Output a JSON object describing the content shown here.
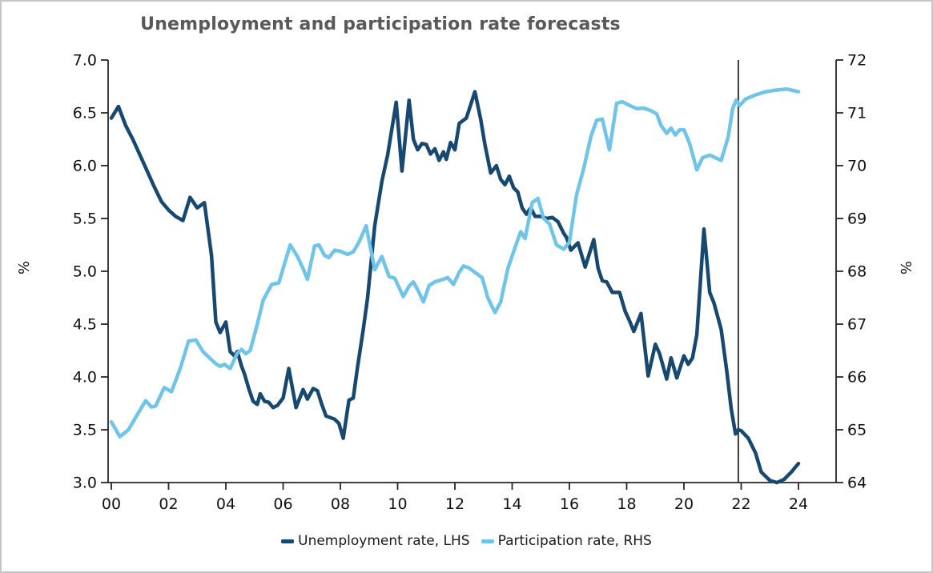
{
  "chart_data": {
    "type": "line",
    "title": "Unemployment and participation rate forecasts",
    "legend_position": "bottom",
    "grid": false,
    "forecast_line_year": 2021.9,
    "y_left": {
      "label": "%",
      "min": 3.0,
      "max": 7.0,
      "tick_step": 0.5,
      "ticks": [
        "7.0",
        "6.5",
        "6.0",
        "5.5",
        "5.0",
        "4.5",
        "4.0",
        "3.5",
        "3.0"
      ]
    },
    "y_right": {
      "label": "%",
      "min": 64,
      "max": 72,
      "tick_step": 1,
      "ticks": [
        "72",
        "71",
        "70",
        "69",
        "68",
        "67",
        "66",
        "65",
        "64"
      ]
    },
    "x": {
      "tick_labels": [
        "00",
        "02",
        "04",
        "06",
        "08",
        "10",
        "12",
        "14",
        "16",
        "18",
        "20",
        "22",
        "24"
      ],
      "tick_years": [
        2000,
        2002,
        2004,
        2006,
        2008,
        2010,
        2012,
        2014,
        2016,
        2018,
        2020,
        2022,
        2024
      ],
      "range": [
        2000,
        2025.3
      ]
    },
    "series": [
      {
        "name": "Unemployment rate, LHS",
        "axis": "left",
        "color": "#17486F",
        "points": [
          [
            0,
            6.45
          ],
          [
            0.25,
            6.56
          ],
          [
            0.5,
            6.38
          ],
          [
            0.75,
            6.25
          ],
          [
            1,
            6.1
          ],
          [
            1.25,
            5.95
          ],
          [
            1.5,
            5.8
          ],
          [
            1.75,
            5.66
          ],
          [
            2,
            5.58
          ],
          [
            2.25,
            5.52
          ],
          [
            2.5,
            5.48
          ],
          [
            2.75,
            5.7
          ],
          [
            3,
            5.6
          ],
          [
            3.25,
            5.65
          ],
          [
            3.5,
            5.15
          ],
          [
            3.65,
            4.52
          ],
          [
            3.8,
            4.42
          ],
          [
            4,
            4.52
          ],
          [
            4.15,
            4.24
          ],
          [
            4.3,
            4.2
          ],
          [
            4.4,
            4.24
          ],
          [
            4.55,
            4.1
          ],
          [
            4.65,
            4.03
          ],
          [
            4.8,
            3.89
          ],
          [
            4.95,
            3.77
          ],
          [
            5.1,
            3.74
          ],
          [
            5.2,
            3.84
          ],
          [
            5.35,
            3.77
          ],
          [
            5.5,
            3.76
          ],
          [
            5.65,
            3.71
          ],
          [
            5.8,
            3.73
          ],
          [
            6,
            3.8
          ],
          [
            6.2,
            4.08
          ],
          [
            6.45,
            3.71
          ],
          [
            6.7,
            3.88
          ],
          [
            6.85,
            3.79
          ],
          [
            7.05,
            3.89
          ],
          [
            7.2,
            3.87
          ],
          [
            7.35,
            3.74
          ],
          [
            7.5,
            3.63
          ],
          [
            7.8,
            3.6
          ],
          [
            7.95,
            3.56
          ],
          [
            8.1,
            3.42
          ],
          [
            8.3,
            3.78
          ],
          [
            8.45,
            3.8
          ],
          [
            8.6,
            4.09
          ],
          [
            8.8,
            4.45
          ],
          [
            8.95,
            4.75
          ],
          [
            9.2,
            5.43
          ],
          [
            9.45,
            5.85
          ],
          [
            9.65,
            6.1
          ],
          [
            9.95,
            6.6
          ],
          [
            10.15,
            5.95
          ],
          [
            10.4,
            6.62
          ],
          [
            10.55,
            6.25
          ],
          [
            10.7,
            6.15
          ],
          [
            10.85,
            6.21
          ],
          [
            11,
            6.2
          ],
          [
            11.15,
            6.11
          ],
          [
            11.3,
            6.16
          ],
          [
            11.45,
            6.05
          ],
          [
            11.6,
            6.13
          ],
          [
            11.7,
            6.06
          ],
          [
            11.85,
            6.22
          ],
          [
            12,
            6.15
          ],
          [
            12.15,
            6.4
          ],
          [
            12.4,
            6.45
          ],
          [
            12.7,
            6.7
          ],
          [
            12.9,
            6.44
          ],
          [
            13.05,
            6.2
          ],
          [
            13.25,
            5.93
          ],
          [
            13.45,
            6.0
          ],
          [
            13.6,
            5.87
          ],
          [
            13.75,
            5.82
          ],
          [
            13.9,
            5.9
          ],
          [
            14.05,
            5.79
          ],
          [
            14.2,
            5.75
          ],
          [
            14.35,
            5.6
          ],
          [
            14.5,
            5.54
          ],
          [
            14.65,
            5.6
          ],
          [
            14.8,
            5.52
          ],
          [
            15,
            5.52
          ],
          [
            15.2,
            5.5
          ],
          [
            15.4,
            5.51
          ],
          [
            15.6,
            5.47
          ],
          [
            15.8,
            5.36
          ],
          [
            15.9,
            5.32
          ],
          [
            16.05,
            5.2
          ],
          [
            16.3,
            5.27
          ],
          [
            16.55,
            5.04
          ],
          [
            16.85,
            5.3
          ],
          [
            17,
            5.03
          ],
          [
            17.15,
            4.91
          ],
          [
            17.3,
            4.9
          ],
          [
            17.5,
            4.8
          ],
          [
            17.75,
            4.8
          ],
          [
            17.95,
            4.62
          ],
          [
            18.1,
            4.53
          ],
          [
            18.25,
            4.43
          ],
          [
            18.5,
            4.6
          ],
          [
            18.75,
            4.01
          ],
          [
            19,
            4.31
          ],
          [
            19.15,
            4.22
          ],
          [
            19.4,
            3.98
          ],
          [
            19.55,
            4.18
          ],
          [
            19.75,
            3.99
          ],
          [
            20,
            4.2
          ],
          [
            20.15,
            4.12
          ],
          [
            20.3,
            4.18
          ],
          [
            20.45,
            4.4
          ],
          [
            20.7,
            5.4
          ],
          [
            20.9,
            4.8
          ],
          [
            21.05,
            4.7
          ],
          [
            21.3,
            4.45
          ],
          [
            21.5,
            4.05
          ],
          [
            21.65,
            3.7
          ],
          [
            21.8,
            3.46
          ],
          [
            21.9,
            3.5
          ],
          [
            22,
            3.49
          ],
          [
            22.25,
            3.42
          ],
          [
            22.5,
            3.28
          ],
          [
            22.7,
            3.1
          ],
          [
            23,
            3.02
          ],
          [
            23.25,
            3.0
          ],
          [
            23.5,
            3.03
          ],
          [
            23.75,
            3.1
          ],
          [
            24,
            3.18
          ]
        ]
      },
      {
        "name": "Participation rate, RHS",
        "axis": "right",
        "color": "#6FC4E8",
        "points": [
          [
            0,
            65.15
          ],
          [
            0.3,
            64.87
          ],
          [
            0.6,
            65.0
          ],
          [
            0.9,
            65.28
          ],
          [
            1.2,
            65.55
          ],
          [
            1.4,
            65.43
          ],
          [
            1.55,
            65.45
          ],
          [
            1.85,
            65.8
          ],
          [
            2.1,
            65.72
          ],
          [
            2.4,
            66.15
          ],
          [
            2.7,
            66.68
          ],
          [
            2.95,
            66.7
          ],
          [
            3.2,
            66.48
          ],
          [
            3.45,
            66.35
          ],
          [
            3.65,
            66.25
          ],
          [
            3.8,
            66.2
          ],
          [
            3.95,
            66.24
          ],
          [
            4.15,
            66.16
          ],
          [
            4.4,
            66.45
          ],
          [
            4.55,
            66.52
          ],
          [
            4.7,
            66.44
          ],
          [
            4.85,
            66.5
          ],
          [
            5.1,
            67.0
          ],
          [
            5.3,
            67.45
          ],
          [
            5.6,
            67.75
          ],
          [
            5.85,
            67.78
          ],
          [
            6.25,
            68.5
          ],
          [
            6.5,
            68.28
          ],
          [
            6.7,
            68.05
          ],
          [
            6.85,
            67.85
          ],
          [
            7.1,
            68.48
          ],
          [
            7.25,
            68.5
          ],
          [
            7.45,
            68.3
          ],
          [
            7.6,
            68.26
          ],
          [
            7.8,
            68.4
          ],
          [
            8,
            68.38
          ],
          [
            8.25,
            68.32
          ],
          [
            8.45,
            68.37
          ],
          [
            8.65,
            68.55
          ],
          [
            8.9,
            68.86
          ],
          [
            9.2,
            68.03
          ],
          [
            9.45,
            68.28
          ],
          [
            9.7,
            67.9
          ],
          [
            9.9,
            67.87
          ],
          [
            10.2,
            67.52
          ],
          [
            10.4,
            67.72
          ],
          [
            10.55,
            67.8
          ],
          [
            10.75,
            67.6
          ],
          [
            10.9,
            67.42
          ],
          [
            11.1,
            67.73
          ],
          [
            11.3,
            67.8
          ],
          [
            11.6,
            67.85
          ],
          [
            11.75,
            67.88
          ],
          [
            11.95,
            67.75
          ],
          [
            12.15,
            67.98
          ],
          [
            12.3,
            68.1
          ],
          [
            12.5,
            68.06
          ],
          [
            12.7,
            67.98
          ],
          [
            12.95,
            67.88
          ],
          [
            13.15,
            67.5
          ],
          [
            13.4,
            67.22
          ],
          [
            13.6,
            67.42
          ],
          [
            13.85,
            68.05
          ],
          [
            14.1,
            68.45
          ],
          [
            14.3,
            68.75
          ],
          [
            14.45,
            68.62
          ],
          [
            14.7,
            69.3
          ],
          [
            14.9,
            69.38
          ],
          [
            15.1,
            69.0
          ],
          [
            15.3,
            68.9
          ],
          [
            15.55,
            68.5
          ],
          [
            15.8,
            68.42
          ],
          [
            16,
            68.55
          ],
          [
            16.25,
            69.45
          ],
          [
            16.5,
            69.95
          ],
          [
            16.75,
            70.55
          ],
          [
            16.95,
            70.86
          ],
          [
            17.15,
            70.88
          ],
          [
            17.4,
            70.3
          ],
          [
            17.65,
            71.18
          ],
          [
            17.85,
            71.21
          ],
          [
            18.1,
            71.14
          ],
          [
            18.35,
            71.08
          ],
          [
            18.6,
            71.09
          ],
          [
            18.85,
            71.04
          ],
          [
            19.05,
            70.98
          ],
          [
            19.2,
            70.76
          ],
          [
            19.4,
            70.61
          ],
          [
            19.55,
            70.71
          ],
          [
            19.7,
            70.58
          ],
          [
            19.85,
            70.68
          ],
          [
            20,
            70.68
          ],
          [
            20.2,
            70.42
          ],
          [
            20.45,
            69.92
          ],
          [
            20.65,
            70.15
          ],
          [
            20.9,
            70.2
          ],
          [
            21.1,
            70.15
          ],
          [
            21.3,
            70.1
          ],
          [
            21.55,
            70.55
          ],
          [
            21.7,
            71.08
          ],
          [
            21.82,
            71.24
          ],
          [
            21.95,
            71.14
          ],
          [
            22.15,
            71.26
          ],
          [
            22.5,
            71.34
          ],
          [
            22.85,
            71.4
          ],
          [
            23.2,
            71.43
          ],
          [
            23.6,
            71.45
          ],
          [
            24,
            71.4
          ]
        ]
      }
    ]
  },
  "legend": {
    "items": [
      {
        "label": "Unemployment rate, LHS",
        "color": "#17486F"
      },
      {
        "label": "Participation rate, RHS",
        "color": "#6FC4E8"
      }
    ]
  }
}
